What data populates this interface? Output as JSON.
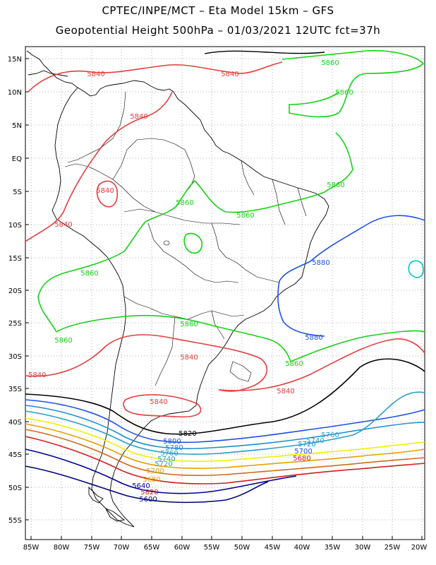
{
  "header": {
    "line1": "CPTEC/INPE/MCT –  Eta Model 15km – GFS",
    "line2": "Geopotential Height 500hPa – 01/03/2021 12UTC fct=37h"
  },
  "map": {
    "lat_labels": [
      "15N",
      "10N",
      "5N",
      "EQ",
      "5S",
      "10S",
      "15S",
      "20S",
      "25S",
      "30S",
      "35S",
      "40S",
      "45S",
      "50S",
      "55S"
    ],
    "lon_labels": [
      "85W",
      "80W",
      "75W",
      "70W",
      "65W",
      "60W",
      "55W",
      "50W",
      "45W",
      "40W",
      "35W",
      "30W",
      "25W",
      "20W"
    ],
    "colors": {
      "c5600": "#00007a",
      "c5640": "#000096",
      "c5680": "#d21e1e",
      "c5700": "#d2691e",
      "c5720": "#e6a000",
      "c5740": "#f0f000",
      "c5760": "#28a0c8",
      "c5780": "#1e8cd2",
      "c5800": "#1e50e6",
      "c5820": "#000000",
      "c5840": "#e63c3c",
      "c5860": "#14d214",
      "c5880": "#1e50e6",
      "land": "#000000",
      "grid": "#9a9a9a",
      "cyan": "#00c8c8"
    },
    "contour_labels": {
      "l5840": "5840",
      "l5860": "5860",
      "l5880": "5880",
      "l5820": "5820",
      "l5800": "5800",
      "l5780": "5780",
      "l5760": "5760",
      "l5740": "5740",
      "l5720": "5720",
      "l5700": "5700",
      "l5680": "5680",
      "l5640": "5640",
      "l5600": "5600"
    }
  }
}
